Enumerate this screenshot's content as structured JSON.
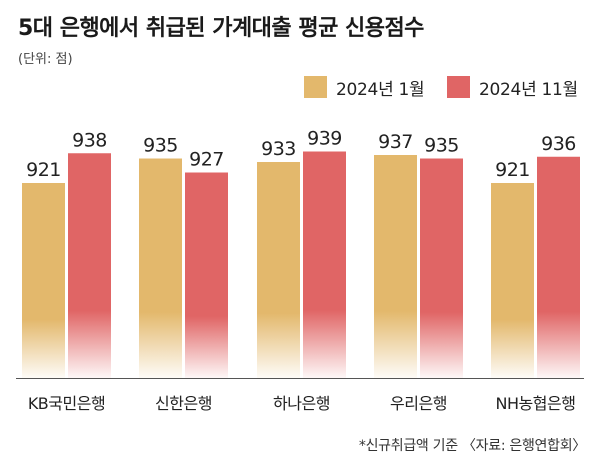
{
  "header": {
    "title": "5대 은행에서 취급된 가계대출 평균 신용점수",
    "unit": "(단위: 점)"
  },
  "footer": {
    "note": "*신규취급액 기준 〈자료: 은행연합회〉"
  },
  "colors": {
    "series_1": "#E3B86C",
    "series_2": "#E06565",
    "baseline": "#555555"
  },
  "chart_data": {
    "type": "bar",
    "categories": [
      "KB국민은행",
      "신한은행",
      "하나은행",
      "우리은행",
      "NH농협은행"
    ],
    "series": [
      {
        "name": "2024년 1월",
        "values": [
          921,
          935,
          933,
          937,
          921
        ]
      },
      {
        "name": "2024년 11월",
        "values": [
          938,
          927,
          939,
          935,
          936
        ]
      }
    ],
    "legend_position": "top-right",
    "grid": false
  }
}
